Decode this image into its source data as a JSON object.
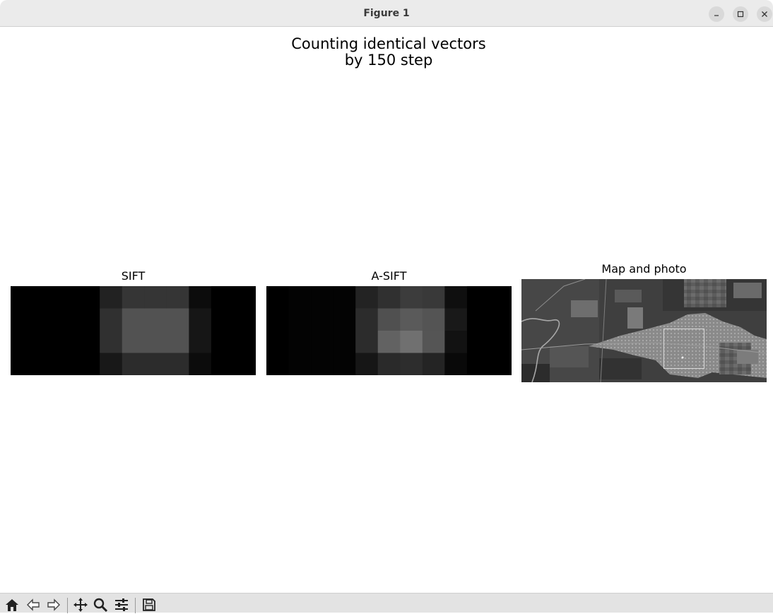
{
  "window": {
    "title": "Figure 1",
    "controls": [
      "minimize-icon",
      "maximize-icon",
      "close-icon"
    ]
  },
  "figure": {
    "suptitle_line1": "Counting identical vectors",
    "suptitle_line2": "by 150 step",
    "axes": [
      {
        "title": "SIFT",
        "image": {
          "colormap": "gray",
          "rows": 4,
          "cols": 11,
          "values": [
            [
              0,
              0,
              0,
              0,
              34,
              53,
              53,
              53,
              12,
              0,
              0
            ],
            [
              0,
              0,
              0,
              0,
              48,
              82,
              82,
              82,
              22,
              0,
              0
            ],
            [
              0,
              0,
              0,
              0,
              48,
              82,
              82,
              82,
              22,
              0,
              0
            ],
            [
              0,
              0,
              0,
              0,
              24,
              44,
              44,
              44,
              12,
              0,
              0
            ]
          ]
        }
      },
      {
        "title": "A-SIFT",
        "image": {
          "colormap": "gray",
          "rows": 4,
          "cols": 11,
          "values": [
            [
              0,
              3,
              3,
              3,
              35,
              48,
              60,
              57,
              15,
              0,
              0
            ],
            [
              0,
              3,
              3,
              3,
              44,
              80,
              90,
              84,
              25,
              0,
              0
            ],
            [
              0,
              3,
              3,
              3,
              44,
              98,
              112,
              85,
              18,
              0,
              0
            ],
            [
              0,
              3,
              3,
              3,
              22,
              42,
              45,
              36,
              9,
              0,
              0
            ]
          ]
        }
      },
      {
        "title": "Map and photo",
        "image": {
          "kind": "grayscale-satellite-map",
          "highlight": "photo-region-rectangle"
        }
      }
    ]
  },
  "toolbar": {
    "buttons": [
      "home-icon",
      "back-icon",
      "forward-icon",
      "pan-icon",
      "zoom-icon",
      "configure-subplots-icon",
      "save-icon"
    ]
  }
}
